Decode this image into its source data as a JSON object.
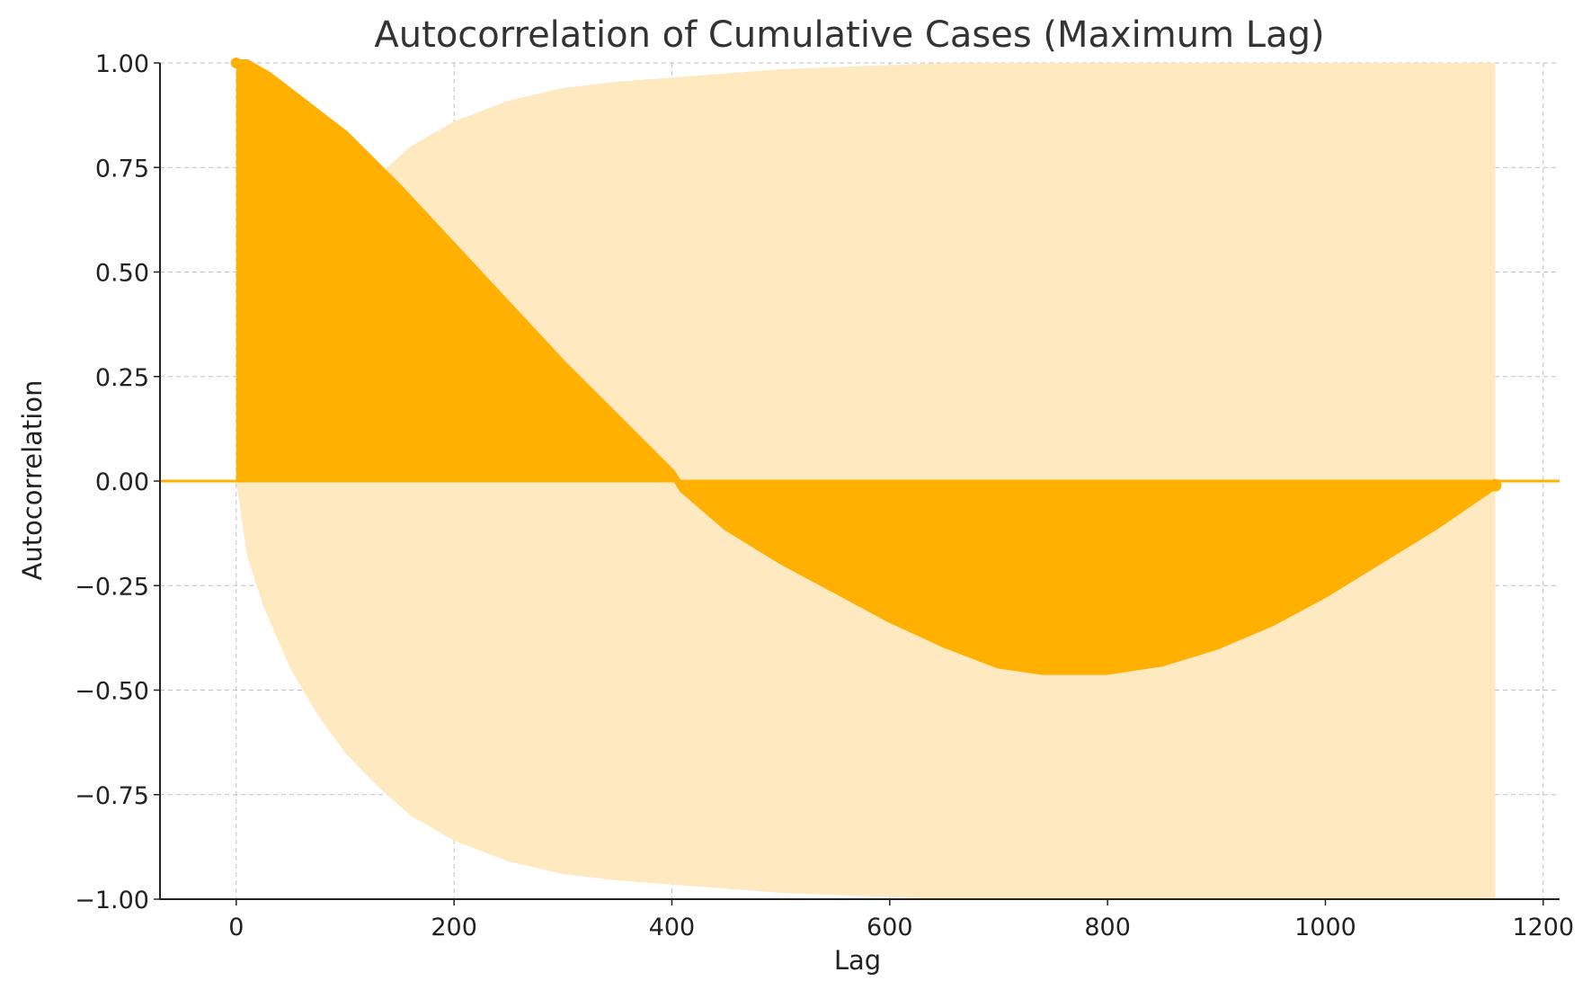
{
  "chart_data": {
    "type": "area",
    "title": "Autocorrelation of Cumulative Cases (Maximum Lag)",
    "xlabel": "Lag",
    "ylabel": "Autocorrelation",
    "xlim": [
      -70,
      1215
    ],
    "ylim": [
      -1.0,
      1.0
    ],
    "xticks": [
      0,
      200,
      400,
      600,
      800,
      1000,
      1200
    ],
    "xtick_labels": [
      "0",
      "200",
      "400",
      "600",
      "800",
      "1000",
      "1200"
    ],
    "yticks": [
      1.0,
      0.75,
      0.5,
      0.25,
      0.0,
      -0.25,
      -0.5,
      -0.75,
      -1.0
    ],
    "ytick_labels": [
      "1.00",
      "0.75",
      "0.50",
      "0.25",
      "0.00",
      "−0.25",
      "−0.50",
      "−0.75",
      "−1.00"
    ],
    "grid": true,
    "max_lag": 1156,
    "series": [
      {
        "kind": "acf",
        "color": "#FFB000",
        "x": [
          0,
          10,
          30,
          60,
          100,
          150,
          200,
          250,
          300,
          350,
          400,
          410,
          450,
          500,
          550,
          600,
          650,
          700,
          740,
          800,
          850,
          900,
          950,
          1000,
          1050,
          1100,
          1156
        ],
        "y": [
          1.0,
          1.0,
          0.97,
          0.91,
          0.83,
          0.7,
          0.56,
          0.42,
          0.28,
          0.15,
          0.02,
          -0.02,
          -0.11,
          -0.19,
          -0.26,
          -0.33,
          -0.39,
          -0.44,
          -0.455,
          -0.455,
          -0.435,
          -0.395,
          -0.34,
          -0.27,
          -0.19,
          -0.11,
          -0.01
        ]
      },
      {
        "kind": "confidence_band",
        "color": "#FFE9C0",
        "x": [
          0,
          10,
          25,
          50,
          75,
          100,
          130,
          160,
          200,
          250,
          300,
          350,
          400,
          450,
          500,
          550,
          600,
          650,
          700,
          800,
          900,
          1000,
          1100,
          1156
        ],
        "upper": [
          0.0,
          0.18,
          0.3,
          0.45,
          0.56,
          0.65,
          0.73,
          0.8,
          0.86,
          0.91,
          0.94,
          0.955,
          0.965,
          0.975,
          0.985,
          0.99,
          0.995,
          1.0,
          1.0,
          1.0,
          1.0,
          1.0,
          1.0,
          1.0
        ],
        "lower": [
          0.0,
          -0.18,
          -0.3,
          -0.45,
          -0.56,
          -0.65,
          -0.73,
          -0.8,
          -0.86,
          -0.91,
          -0.94,
          -0.955,
          -0.965,
          -0.975,
          -0.985,
          -0.99,
          -0.995,
          -1.0,
          -1.0,
          -1.0,
          -1.0,
          -1.0,
          -1.0,
          -1.0
        ]
      }
    ],
    "zero_line_color": "#FFB000"
  }
}
